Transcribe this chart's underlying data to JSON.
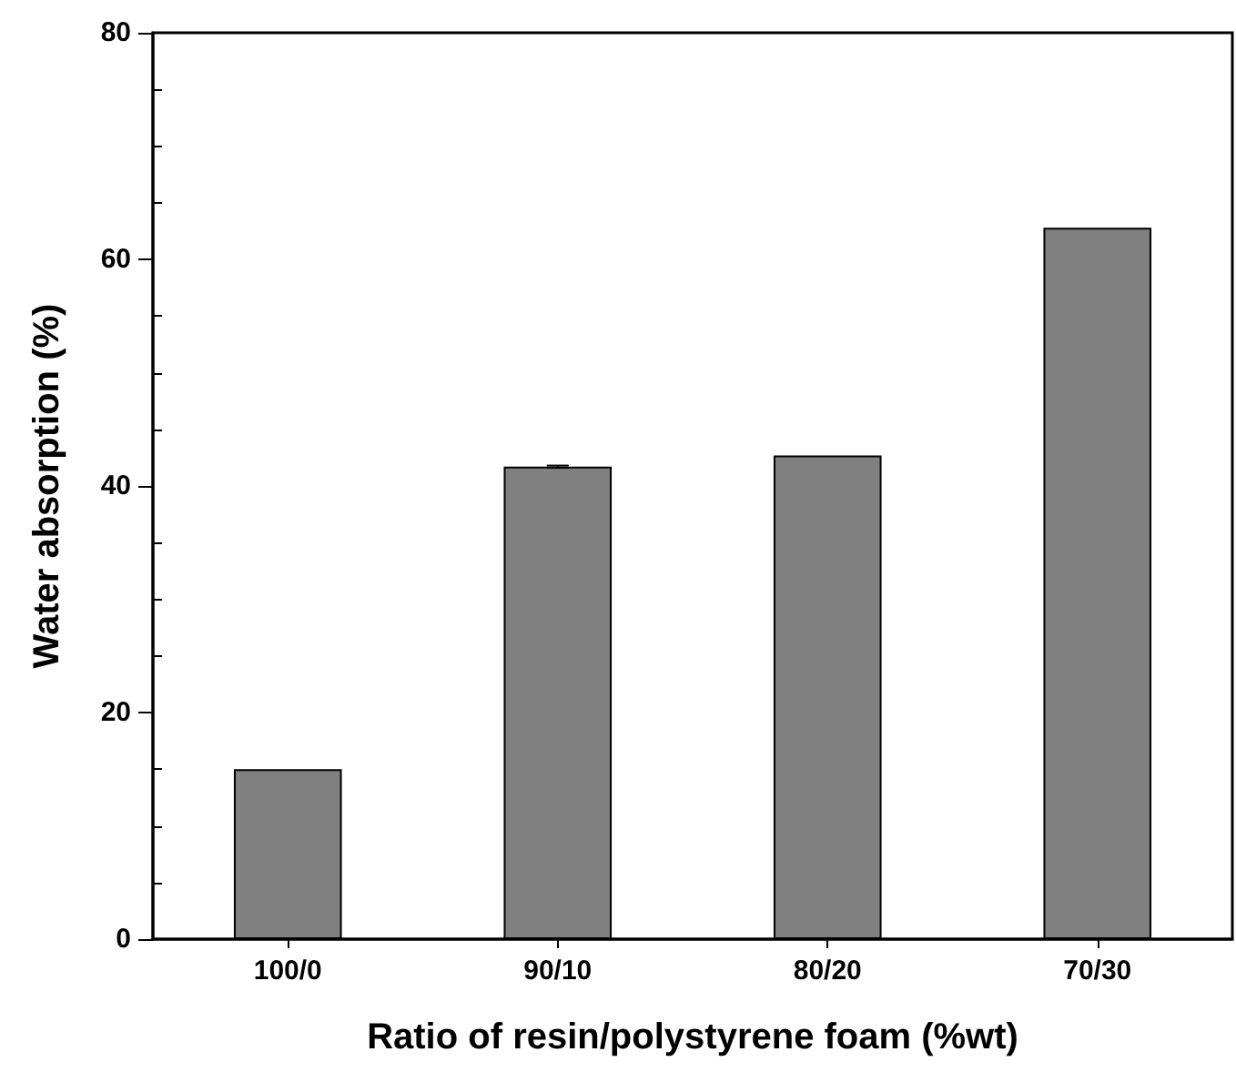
{
  "chart_data": {
    "type": "bar",
    "xlabel": "Ratio of resin/polystyrene foam (%wt)",
    "ylabel": "Water absorption (%)",
    "categories": [
      "100/0",
      "90/10",
      "80/20",
      "70/30"
    ],
    "values": [
      15.0,
      41.7,
      42.7,
      62.8
    ],
    "errors": [
      null,
      0.1,
      null,
      null
    ],
    "color": "#808080",
    "ylim": [
      0,
      80
    ],
    "yticks": [
      0,
      20,
      40,
      60,
      80
    ],
    "grid": false
  }
}
